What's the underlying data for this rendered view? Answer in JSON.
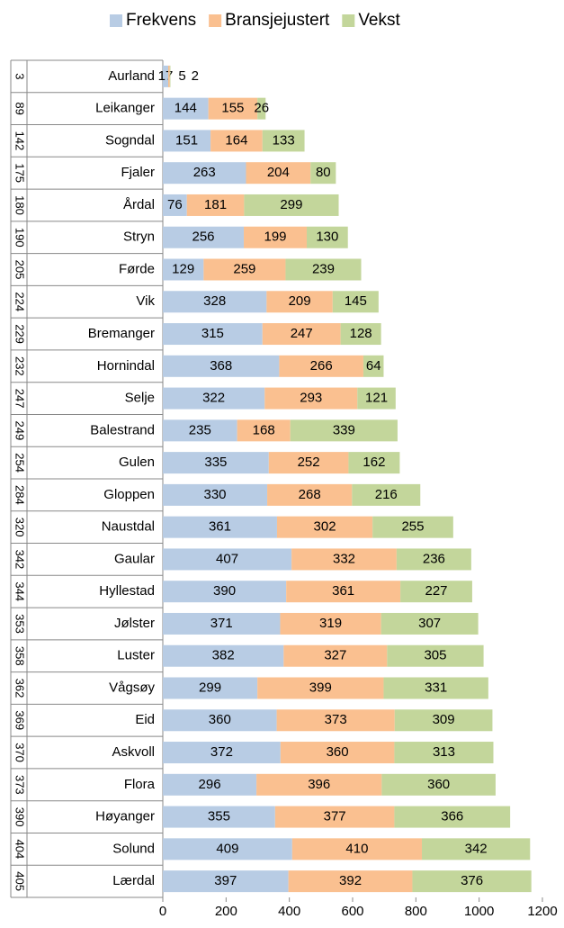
{
  "chart_data": {
    "type": "stacked-bar-horizontal",
    "ranks": [
      3,
      89,
      142,
      175,
      180,
      190,
      205,
      224,
      229,
      232,
      247,
      249,
      254,
      284,
      320,
      342,
      344,
      353,
      358,
      362,
      369,
      370,
      373,
      390,
      404,
      405
    ],
    "categories": [
      "Aurland",
      "Leikanger",
      "Sogndal",
      "Fjaler",
      "Årdal",
      "Stryn",
      "Førde",
      "Vik",
      "Bremanger",
      "Hornindal",
      "Selje",
      "Balestrand",
      "Gulen",
      "Gloppen",
      "Naustdal",
      "Gaular",
      "Hyllestad",
      "Jølster",
      "Luster",
      "Vågsøy",
      "Eid",
      "Askvoll",
      "Flora",
      "Høyanger",
      "Solund",
      "Lærdal"
    ],
    "series": [
      {
        "name": "Frekvens",
        "color": "#b8cce4",
        "values": [
          17,
          144,
          151,
          263,
          76,
          256,
          129,
          328,
          315,
          368,
          322,
          235,
          335,
          330,
          361,
          407,
          390,
          371,
          382,
          299,
          360,
          372,
          296,
          355,
          409,
          397
        ]
      },
      {
        "name": "Bransjejustert",
        "color": "#fac090",
        "values": [
          5,
          155,
          164,
          204,
          181,
          199,
          259,
          209,
          247,
          266,
          293,
          168,
          252,
          268,
          302,
          332,
          361,
          319,
          327,
          399,
          373,
          360,
          396,
          377,
          410,
          392
        ]
      },
      {
        "name": "Vekst",
        "color": "#c3d69b",
        "values": [
          2,
          26,
          133,
          80,
          299,
          130,
          239,
          145,
          128,
          64,
          121,
          339,
          162,
          216,
          255,
          236,
          227,
          307,
          305,
          331,
          309,
          313,
          360,
          366,
          342,
          376
        ]
      }
    ],
    "xlim": [
      0,
      1200
    ],
    "xticks": [
      0,
      200,
      400,
      600,
      800,
      1000,
      1200
    ],
    "legend": "top"
  }
}
